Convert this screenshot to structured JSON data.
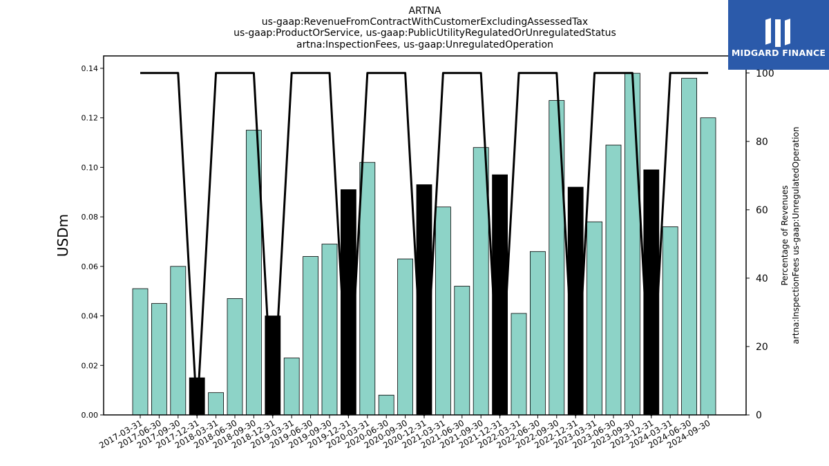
{
  "chart_data": {
    "type": "bar",
    "title": [
      "ARTNA",
      "us-gaap:RevenueFromContractWithCustomerExcludingAssessedTax",
      "us-gaap:ProductOrService, us-gaap:PublicUtilityRegulatedOrUnregulatedStatus",
      "artna:InspectionFees, us-gaap:UnregulatedOperation"
    ],
    "ylabel": "USDm",
    "y2label": [
      "Percentage of Revenues",
      "artna:InspectionFees us-gaap:UnregulatedOperation"
    ],
    "ylim": [
      0,
      0.145
    ],
    "y2lim": [
      0,
      105
    ],
    "yticks": [
      "0.00",
      "0.02",
      "0.04",
      "0.06",
      "0.08",
      "0.10",
      "0.12",
      "0.14"
    ],
    "y2ticks": [
      "0",
      "20",
      "40",
      "60",
      "80",
      "100"
    ],
    "categories": [
      "2017-03-31",
      "2017-06-30",
      "2017-09-30",
      "2017-12-31",
      "2018-03-31",
      "2018-06-30",
      "2018-09-30",
      "2018-12-31",
      "2019-03-31",
      "2019-06-30",
      "2019-09-30",
      "2019-12-31",
      "2020-03-31",
      "2020-06-30",
      "2020-09-30",
      "2020-12-31",
      "2021-03-31",
      "2021-06-30",
      "2021-09-30",
      "2021-12-31",
      "2022-03-31",
      "2022-06-30",
      "2022-09-30",
      "2022-12-31",
      "2023-03-31",
      "2023-06-30",
      "2023-09-30",
      "2023-12-31",
      "2024-03-31",
      "2024-06-30",
      "2024-09-30"
    ],
    "values": [
      0.051,
      0.045,
      0.06,
      0.015,
      0.009,
      0.047,
      0.115,
      0.04,
      0.023,
      0.064,
      0.069,
      0.091,
      0.102,
      0.008,
      0.063,
      0.093,
      0.084,
      0.052,
      0.108,
      0.097,
      0.041,
      0.066,
      0.127,
      0.092,
      0.078,
      0.109,
      0.138,
      0.099,
      0.076,
      0.136,
      0.12
    ],
    "bar_colors": [
      "#8dd3c7",
      "#8dd3c7",
      "#8dd3c7",
      "#000000",
      "#8dd3c7",
      "#8dd3c7",
      "#8dd3c7",
      "#000000",
      "#8dd3c7",
      "#8dd3c7",
      "#8dd3c7",
      "#000000",
      "#8dd3c7",
      "#8dd3c7",
      "#8dd3c7",
      "#000000",
      "#8dd3c7",
      "#8dd3c7",
      "#8dd3c7",
      "#000000",
      "#8dd3c7",
      "#8dd3c7",
      "#8dd3c7",
      "#000000",
      "#8dd3c7",
      "#8dd3c7",
      "#8dd3c7",
      "#000000",
      "#8dd3c7",
      "#8dd3c7",
      "#8dd3c7"
    ],
    "line_values": [
      100,
      100,
      100,
      0,
      100,
      100,
      100,
      0,
      100,
      100,
      100,
      0,
      100,
      100,
      100,
      0,
      100,
      100,
      100,
      0,
      100,
      100,
      100,
      0,
      100,
      100,
      100,
      0,
      100,
      100,
      100
    ],
    "line_color": "#000000",
    "legend": "none",
    "grid": false
  },
  "logo": {
    "text": "MIDGARD FINANCE",
    "color": "#2b5aaa"
  }
}
